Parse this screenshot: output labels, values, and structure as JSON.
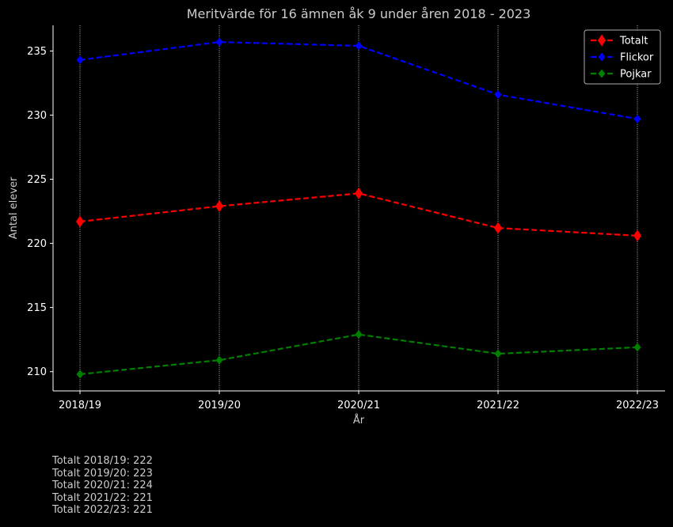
{
  "chart_data": {
    "type": "line",
    "title": "Meritvärde för 16 ämnen åk 9 under åren 2018 - 2023",
    "xlabel": "År",
    "ylabel": "Antal elever",
    "categories": [
      "2018/19",
      "2019/20",
      "2020/21",
      "2021/22",
      "2022/23"
    ],
    "ylim": [
      208.5,
      237
    ],
    "yticks": [
      210,
      215,
      220,
      225,
      230,
      235
    ],
    "grid": "vertical dotted lines at each category",
    "legend_position": "top-right",
    "series": [
      {
        "name": "Totalt",
        "color": "#ff0000",
        "marker": "diamond-large",
        "values": [
          221.7,
          222.9,
          223.9,
          221.2,
          220.6
        ]
      },
      {
        "name": "Flickor",
        "color": "#0000ff",
        "marker": "diamond",
        "values": [
          234.3,
          235.7,
          235.4,
          231.6,
          229.7
        ]
      },
      {
        "name": "Pojkar",
        "color": "#008000",
        "marker": "diamond",
        "values": [
          209.8,
          210.9,
          212.9,
          211.4,
          211.9
        ]
      }
    ]
  },
  "footnotes": [
    "Totalt 2018/19: 222",
    "Totalt 2019/20: 223",
    "Totalt 2020/21: 224",
    "Totalt 2021/22: 221",
    "Totalt 2022/23: 221"
  ]
}
